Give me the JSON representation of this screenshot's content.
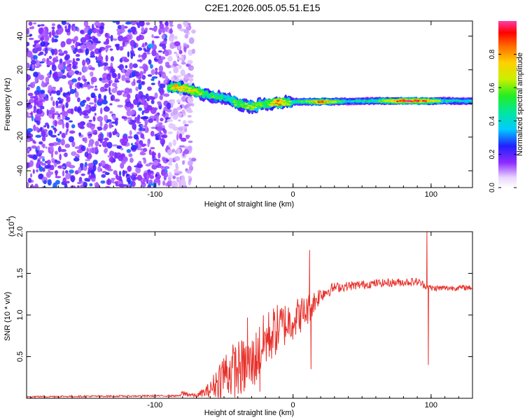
{
  "title": "C2E1.2026.005.05.51.E15",
  "colors": {
    "line": "#e8302a",
    "axis": "#000000",
    "background": "#ffffff"
  },
  "chart_data": [
    {
      "type": "heatmap",
      "name": "spectrogram",
      "xlabel": "Height of straight line (km)",
      "ylabel": "Frequency (Hz)",
      "xlim": [
        -193,
        130
      ],
      "ylim": [
        -50,
        49
      ],
      "xticks": [
        -100,
        0,
        100
      ],
      "xtick_labels": [
        "-100",
        "0",
        "100"
      ],
      "yticks": [
        -40,
        -20,
        0,
        20,
        40
      ],
      "ytick_labels": [
        "-40",
        "-20",
        "0",
        "20",
        "40"
      ],
      "colorbar": {
        "label": "Normalized spectral amplitude",
        "range": [
          0,
          1
        ],
        "ticks": [
          0,
          0.2,
          0.4,
          0.6,
          0.8
        ],
        "tick_labels": [
          "0.0",
          "0.2",
          "0.4",
          "0.6",
          "0.8"
        ],
        "colormap": "rainbow"
      },
      "noise_region": {
        "x_from": -193,
        "x_to": -72,
        "amplitude": 0.15
      },
      "ridge": [
        {
          "x": -90,
          "f": 10,
          "amp": 0.6
        },
        {
          "x": -84,
          "f": 9.5,
          "amp": 0.8
        },
        {
          "x": -78,
          "f": 9,
          "amp": 0.7
        },
        {
          "x": -70,
          "f": 7,
          "amp": 0.65
        },
        {
          "x": -62,
          "f": 5,
          "amp": 0.5
        },
        {
          "x": -55,
          "f": 4,
          "amp": 0.55
        },
        {
          "x": -48,
          "f": 3,
          "amp": 0.45
        },
        {
          "x": -40,
          "f": 0,
          "amp": 0.6
        },
        {
          "x": -30,
          "f": -2,
          "amp": 0.6
        },
        {
          "x": -25,
          "f": -1,
          "amp": 0.6
        },
        {
          "x": -20,
          "f": 0,
          "amp": 0.55
        },
        {
          "x": -10,
          "f": 0.5,
          "amp": 0.8
        },
        {
          "x": 0,
          "f": 1,
          "amp": 0.5
        },
        {
          "x": 10,
          "f": 1,
          "amp": 0.55
        },
        {
          "x": 20,
          "f": 1,
          "amp": 0.85
        },
        {
          "x": 40,
          "f": 1.2,
          "amp": 0.4
        },
        {
          "x": 60,
          "f": 1.5,
          "amp": 0.5
        },
        {
          "x": 70,
          "f": 1.5,
          "amp": 0.7
        },
        {
          "x": 80,
          "f": 1.5,
          "amp": 0.95
        },
        {
          "x": 90,
          "f": 1.5,
          "amp": 0.9
        },
        {
          "x": 100,
          "f": 1.5,
          "amp": 0.75
        },
        {
          "x": 110,
          "f": 1.5,
          "amp": 0.45
        },
        {
          "x": 130,
          "f": 1.5,
          "amp": 0.4
        }
      ]
    },
    {
      "type": "line",
      "name": "snr",
      "xlabel": "Height of straight line (km)",
      "ylabel": "SNR (10 * v/v)",
      "y_multiplier_label": "(x10",
      "y_multiplier_exponent": "4",
      "xlim": [
        -193,
        130
      ],
      "ylim": [
        0,
        2.0
      ],
      "xticks": [
        -100,
        0,
        100
      ],
      "xtick_labels": [
        "-100",
        "0",
        "100"
      ],
      "yticks": [
        0.5,
        1.0,
        1.5,
        2.0
      ],
      "ytick_labels": [
        "0.5",
        "1.0",
        "1.5",
        "2.0"
      ],
      "envelope": [
        {
          "x": -193,
          "base": 0.02,
          "noise": 0.01
        },
        {
          "x": -82,
          "base": 0.03,
          "noise": 0.01
        },
        {
          "x": -80,
          "base": 0.06,
          "noise": 0.04
        },
        {
          "x": -70,
          "base": 0.03,
          "noise": 0.02
        },
        {
          "x": -60,
          "base": 0.1,
          "noise": 0.1
        },
        {
          "x": -50,
          "base": 0.3,
          "noise": 0.3
        },
        {
          "x": -40,
          "base": 0.35,
          "noise": 0.35
        },
        {
          "x": -30,
          "base": 0.4,
          "noise": 0.35
        },
        {
          "x": -20,
          "base": 0.7,
          "noise": 0.35
        },
        {
          "x": -10,
          "base": 0.85,
          "noise": 0.3
        },
        {
          "x": 0,
          "base": 0.95,
          "noise": 0.25
        },
        {
          "x": 10,
          "base": 1.05,
          "noise": 0.2
        },
        {
          "x": 20,
          "base": 1.25,
          "noise": 0.1
        },
        {
          "x": 30,
          "base": 1.33,
          "noise": 0.06
        },
        {
          "x": 60,
          "base": 1.38,
          "noise": 0.05
        },
        {
          "x": 90,
          "base": 1.4,
          "noise": 0.05
        },
        {
          "x": 100,
          "base": 1.32,
          "noise": 0.04
        },
        {
          "x": 130,
          "base": 1.33,
          "noise": 0.03
        }
      ],
      "spikes": [
        {
          "x": -33,
          "y": 0.97
        },
        {
          "x": -24,
          "y": 0.08
        },
        {
          "x": 12,
          "y": 1.78
        },
        {
          "x": 13,
          "y": 0.35
        },
        {
          "x": 97,
          "y": 2.0
        },
        {
          "x": 98,
          "y": 0.4
        }
      ]
    }
  ]
}
